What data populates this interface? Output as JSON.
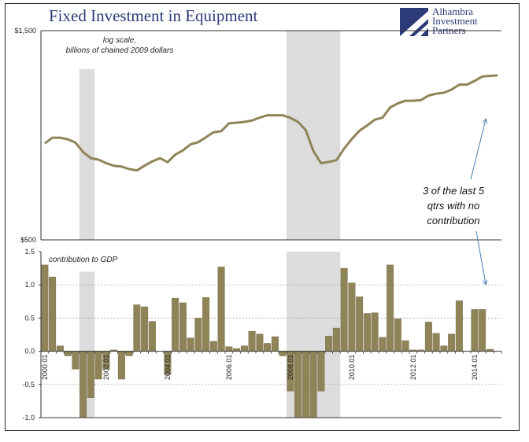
{
  "title": "Fixed Investment in Equipment",
  "logo": {
    "lines": [
      "Alhambra",
      "Investment",
      "Partners"
    ],
    "icon": "alhambra-logo-icon"
  },
  "colors": {
    "series": "#8f8458",
    "bar_fill": "#8f8458",
    "recession": "#dcdcdc",
    "title": "#2d3a78"
  },
  "chart_data": [
    {
      "type": "line",
      "scale": "log",
      "annotation": [
        "log scale,",
        "billions of chained 2009 dollars"
      ],
      "ylim": [
        500,
        1500
      ],
      "yticks": [
        {
          "value": 500,
          "label": "$500"
        },
        {
          "value": 1500,
          "label": "$1,500"
        }
      ],
      "x": [
        "2000Q1",
        "2000Q2",
        "2000Q3",
        "2000Q4",
        "2001Q1",
        "2001Q2",
        "2001Q3",
        "2001Q4",
        "2002Q1",
        "2002Q2",
        "2002Q3",
        "2002Q4",
        "2003Q1",
        "2003Q2",
        "2003Q3",
        "2003Q4",
        "2004Q1",
        "2004Q2",
        "2004Q3",
        "2004Q4",
        "2005Q1",
        "2005Q2",
        "2005Q3",
        "2005Q4",
        "2006Q1",
        "2006Q2",
        "2006Q3",
        "2006Q4",
        "2007Q1",
        "2007Q2",
        "2007Q3",
        "2007Q4",
        "2008Q1",
        "2008Q2",
        "2008Q3",
        "2008Q4",
        "2009Q1",
        "2009Q2",
        "2009Q3",
        "2009Q4",
        "2010Q1",
        "2010Q2",
        "2010Q3",
        "2010Q4",
        "2011Q1",
        "2011Q2",
        "2011Q3",
        "2011Q4",
        "2012Q1",
        "2012Q2",
        "2012Q3",
        "2012Q4",
        "2013Q1",
        "2013Q2",
        "2013Q3",
        "2013Q4",
        "2014Q1",
        "2014Q2",
        "2014Q3",
        "2014Q4"
      ],
      "values": [
        830,
        855,
        855,
        848,
        833,
        793,
        768,
        762,
        748,
        738,
        735,
        725,
        720,
        738,
        755,
        768,
        752,
        782,
        800,
        826,
        835,
        857,
        880,
        885,
        922,
        925,
        929,
        936,
        950,
        962,
        962,
        962,
        949,
        929,
        890,
        797,
        748,
        753,
        760,
        807,
        849,
        887,
        912,
        940,
        950,
        1002,
        1024,
        1038,
        1038,
        1041,
        1067,
        1077,
        1083,
        1101,
        1130,
        1130,
        1152,
        1179,
        1183,
        1186
      ]
    },
    {
      "type": "bar",
      "annotation": "contribution to GDP",
      "ylim": [
        -1.0,
        1.5
      ],
      "yticks": [
        {
          "value": 1.5,
          "label": "1.5"
        },
        {
          "value": 1.0,
          "label": "1.0"
        },
        {
          "value": 0.5,
          "label": "0.5"
        },
        {
          "value": 0.0,
          "label": "0.0"
        },
        {
          "value": -0.5,
          "label": "-0.5"
        },
        {
          "value": -1.0,
          "label": "-1.0"
        }
      ],
      "xtick_labels": [
        {
          "index": 0,
          "label": "2000.01"
        },
        {
          "index": 8,
          "label": "2002.01"
        },
        {
          "index": 16,
          "label": "2004.01"
        },
        {
          "index": 24,
          "label": "2006.01"
        },
        {
          "index": 32,
          "label": "2008.01"
        },
        {
          "index": 40,
          "label": "2010.01"
        },
        {
          "index": 48,
          "label": "2012.01"
        },
        {
          "index": 56,
          "label": "2014.01"
        }
      ],
      "values": [
        1.3,
        1.12,
        0.08,
        -0.07,
        -0.27,
        -1.0,
        -0.7,
        -0.42,
        -0.27,
        0.02,
        -0.42,
        -0.07,
        0.7,
        0.67,
        0.45,
        0.0,
        -0.35,
        0.8,
        0.73,
        0.2,
        0.5,
        0.81,
        0.15,
        1.27,
        0.07,
        0.04,
        0.08,
        0.3,
        0.26,
        0.12,
        0.22,
        -0.07,
        -0.6,
        -1.0,
        -1.0,
        -1.0,
        -0.6,
        0.23,
        0.35,
        1.25,
        1.03,
        0.82,
        0.57,
        0.58,
        0.21,
        1.3,
        0.49,
        0.16,
        0.02,
        0.02,
        0.44,
        0.27,
        0.08,
        0.26,
        0.76,
        0.0,
        0.63,
        0.63,
        0.03,
        0.0
      ]
    }
  ],
  "recessions": [
    {
      "start_index": 5,
      "end_index": 6
    },
    {
      "start_index": 32,
      "end_index": 38
    }
  ],
  "callout": {
    "lines": [
      "3 of the last 5",
      "qtrs with no",
      "contribution"
    ]
  }
}
